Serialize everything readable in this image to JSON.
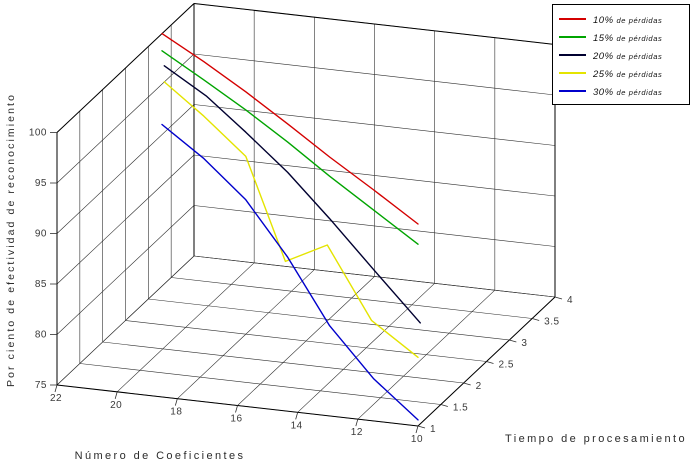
{
  "chart_data": {
    "type": "line",
    "projection": "3d",
    "title": "",
    "grid": true,
    "background": "#ffffff",
    "axes": {
      "x": {
        "label": "Número de Coeficientes",
        "ticks": [
          22,
          20,
          18,
          16,
          14,
          12,
          10
        ],
        "range": [
          10,
          22
        ]
      },
      "y": {
        "label": "Tiempo de procesamiento",
        "ticks": [
          1,
          1.5,
          2,
          2.5,
          3,
          3.5,
          4
        ],
        "range": [
          1,
          4
        ]
      },
      "z": {
        "label": "Por ciento de efectividad de reconocimiento",
        "ticks": [
          75,
          80,
          85,
          90,
          95,
          100
        ],
        "range": [
          75,
          100
        ]
      }
    },
    "series": [
      {
        "name": "10% de pérdidas",
        "color": "#d40000",
        "coefficients": [
          22,
          20,
          18,
          16,
          14,
          12,
          10
        ],
        "time": [
          3.3,
          2.9,
          2.5,
          2.1,
          1.7,
          1.35,
          1.0
        ],
        "effectiveness": [
          100,
          99.6,
          99.0,
          98.2,
          97.3,
          96.2,
          95.0
        ]
      },
      {
        "name": "15% de pérdidas",
        "color": "#00a400",
        "coefficients": [
          22,
          20,
          18,
          16,
          14,
          12,
          10
        ],
        "time": [
          3.3,
          2.9,
          2.5,
          2.1,
          1.7,
          1.35,
          1.0
        ],
        "effectiveness": [
          98.3,
          97.8,
          97.2,
          96.4,
          95.4,
          94.2,
          93.0
        ]
      },
      {
        "name": "20% de pérdidas",
        "color": "#000030",
        "coefficients": [
          22,
          20,
          18,
          16,
          14,
          12,
          10
        ],
        "time": [
          3.35,
          2.95,
          2.5,
          2.1,
          1.7,
          1.35,
          1.05
        ],
        "effectiveness": [
          96.6,
          96.0,
          95.0,
          93.4,
          91.2,
          88.3,
          85.0
        ]
      },
      {
        "name": "25% de pérdidas",
        "color": "#e4e400",
        "coefficients": [
          22,
          20,
          18,
          16,
          14,
          12,
          10
        ],
        "time": [
          3.35,
          2.9,
          2.5,
          2.05,
          1.65,
          1.3,
          1.0
        ],
        "effectiveness": [
          95.0,
          94.2,
          92.6,
          84.8,
          88.8,
          83.5,
          81.8
        ]
      },
      {
        "name": "30% de pérdidas",
        "color": "#0000cc",
        "coefficients": [
          22,
          20,
          18,
          16,
          14,
          12,
          10
        ],
        "time": [
          3.3,
          2.9,
          2.5,
          2.1,
          1.7,
          1.35,
          1.0
        ],
        "effectiveness": [
          91.0,
          90.0,
          88.3,
          85.0,
          80.6,
          77.5,
          75.6
        ]
      }
    ],
    "legend": {
      "position": "top-right",
      "entries": [
        "10% de pérdidas",
        "15% de pérdidas",
        "20% de pérdidas",
        "25% de pérdidas",
        "30% de pérdidas"
      ]
    }
  }
}
